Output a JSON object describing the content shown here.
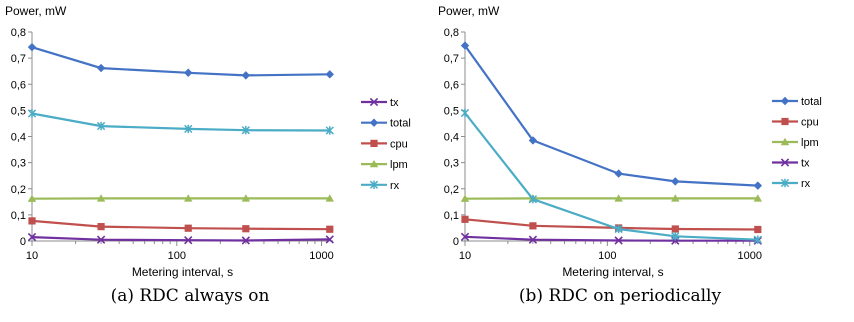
{
  "chart_data": [
    {
      "type": "line",
      "ylabel": "Power, mW",
      "xlabel": "Metering interval, s",
      "x_scale": "log",
      "xlim": [
        10,
        1200
      ],
      "ylim": [
        0,
        0.8
      ],
      "x_ticks": [
        10,
        100,
        1000
      ],
      "x_tick_labels": [
        "10",
        "100",
        "1000"
      ],
      "y_ticks": [
        0,
        0.1,
        0.2,
        0.3,
        0.4,
        0.5,
        0.6,
        0.7,
        0.8
      ],
      "y_tick_labels": [
        "0",
        "0,1",
        "0,2",
        "0,3",
        "0,4",
        "0,5",
        "0,6",
        "0,7",
        "0,8"
      ],
      "legend_position": "right",
      "caption": "(a) RDC always on",
      "x": [
        10,
        30,
        120,
        300,
        1140
      ],
      "series": [
        {
          "name": "tx",
          "color": "#7030a0",
          "marker": "x",
          "values": [
            0.015,
            0.005,
            0.003,
            0.002,
            0.006
          ]
        },
        {
          "name": "total",
          "color": "#4472c4",
          "marker": "diamond",
          "values": [
            0.742,
            0.662,
            0.644,
            0.634,
            0.638
          ]
        },
        {
          "name": "cpu",
          "color": "#c0504d",
          "marker": "square",
          "values": [
            0.077,
            0.055,
            0.049,
            0.047,
            0.045
          ]
        },
        {
          "name": "lpm",
          "color": "#9bbb59",
          "marker": "triangle",
          "values": [
            0.162,
            0.163,
            0.163,
            0.163,
            0.163
          ]
        },
        {
          "name": "rx",
          "color": "#4bacc6",
          "marker": "asterisk",
          "values": [
            0.488,
            0.44,
            0.429,
            0.424,
            0.423
          ]
        }
      ]
    },
    {
      "type": "line",
      "ylabel": "Power, mW",
      "xlabel": "Metering interval, s",
      "x_scale": "log",
      "xlim": [
        10,
        1200
      ],
      "ylim": [
        0,
        0.8
      ],
      "x_ticks": [
        10,
        100,
        1000
      ],
      "x_tick_labels": [
        "10",
        "100",
        "1000"
      ],
      "y_ticks": [
        0,
        0.1,
        0.2,
        0.3,
        0.4,
        0.5,
        0.6,
        0.7,
        0.8
      ],
      "y_tick_labels": [
        "0",
        "0,1",
        "0,2",
        "0,3",
        "0,4",
        "0,5",
        "0,6",
        "0,7",
        "0,8"
      ],
      "legend_position": "right",
      "caption": "(b) RDC on periodically",
      "x": [
        10,
        30,
        120,
        300,
        1140
      ],
      "series": [
        {
          "name": "total",
          "color": "#4472c4",
          "marker": "diamond",
          "values": [
            0.748,
            0.385,
            0.258,
            0.228,
            0.212
          ]
        },
        {
          "name": "cpu",
          "color": "#c0504d",
          "marker": "square",
          "values": [
            0.083,
            0.058,
            0.05,
            0.046,
            0.044
          ]
        },
        {
          "name": "lpm",
          "color": "#9bbb59",
          "marker": "triangle",
          "values": [
            0.162,
            0.163,
            0.163,
            0.163,
            0.163
          ]
        },
        {
          "name": "tx",
          "color": "#7030a0",
          "marker": "x",
          "values": [
            0.016,
            0.005,
            0.002,
            0.001,
            0.001
          ]
        },
        {
          "name": "rx",
          "color": "#4bacc6",
          "marker": "asterisk",
          "values": [
            0.49,
            0.16,
            0.046,
            0.018,
            0.005
          ]
        }
      ]
    }
  ]
}
